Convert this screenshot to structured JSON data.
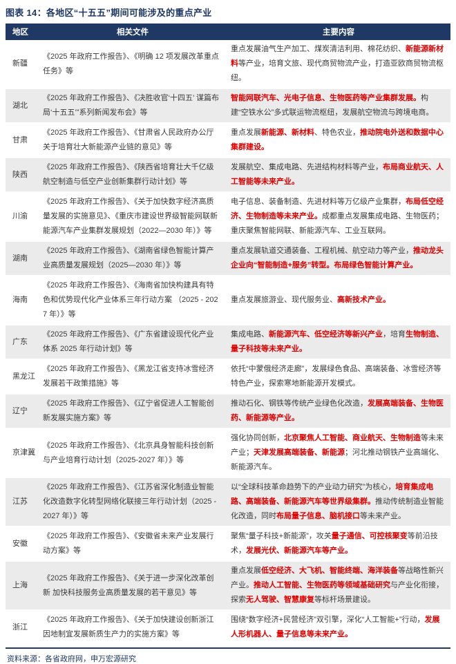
{
  "title": "图表 14：各地区“十五五”期间可能涉及的重点产业",
  "colors": {
    "accent_navy": "#1f3864",
    "highlight_red": "#e00000",
    "row_alt": "#ebebeb"
  },
  "footer": {
    "source": "资料来源：各省政府网，申万宏源研究"
  },
  "table": {
    "headers": [
      "地区",
      "相关文件",
      "主要内容"
    ],
    "rows": [
      {
        "region": "新疆",
        "documents": "《2025 年政府工作报告》、《明确 12 项发展改革重点任务》等",
        "content": [
          {
            "t": "重点发展油气生产加工、煤炭清洁利用、棉花纺织、",
            "red": false
          },
          {
            "t": "新能源新材料",
            "red": true
          },
          {
            "t": "等产业，培育文旅、现代商贸物流产业，打造亚欧商贸物流枢纽。",
            "red": false
          }
        ]
      },
      {
        "region": "湖北",
        "documents": "《2025 年政府工作报告》、《决胜收官‘十四五’ 谋篇布局‘十五五’”系列新闻发布会》等",
        "content": [
          {
            "t": "智能网联汽车、光电子信息、生物医药等产业集群发展。",
            "red": true
          },
          {
            "t": "构建“空铁水公”多式联运物流枢纽，发展航空物流与跨境电商。",
            "red": false
          }
        ]
      },
      {
        "region": "甘肃",
        "documents": "《2025 年政府工作报告》、《甘肃省人民政府办公厅关于培育壮大新能源产业链的意见》等",
        "content": [
          {
            "t": "重点发展",
            "red": false
          },
          {
            "t": "新能源、新材料",
            "red": true
          },
          {
            "t": "、特色农业，",
            "red": false
          },
          {
            "t": "推动院电外送和数据中心集群建设。",
            "red": true
          }
        ]
      },
      {
        "region": "陕西",
        "documents": "《2025 年政府工作报告》、《陕西省培育壮大千亿级航空制造与低空产业创新集群行动计划》等",
        "content": [
          {
            "t": "发展航空、集成电路、先进结构材料等产业，",
            "red": false
          },
          {
            "t": "布局商业航天、人工智能等未来产业。",
            "red": true
          }
        ]
      },
      {
        "region": "川渝",
        "documents": "《2025 年政府工作报告》、《关于加快数字经济高质量发展的实施意见》、《重庆市建设世界级智能网联新能源汽车产业集群发展规划（2022—2030 年）》等",
        "content": [
          {
            "t": "电子信息、装备制造、先进材料等万亿级产业集群，",
            "red": false
          },
          {
            "t": "布局低空经济、生物制造等未来产业。",
            "red": true
          },
          {
            "t": "成都重点发展集成电路、生物医药；重庆聚焦智能网联、新能源汽车、工业互联网。",
            "red": false
          }
        ]
      },
      {
        "region": "湖南",
        "documents": "《2025 年政府工作报告》、《湖南省绿色智能计算产业高质量发展规划（2025—2030 年）》等",
        "content": [
          {
            "t": "重点发展轨道交通装备、工程机械、航空动力等产业，",
            "red": false
          },
          {
            "t": "推动龙头企业向“智能制造+服务”转型。布局绿色智能计算产业。",
            "red": true
          }
        ]
      },
      {
        "region": "海南",
        "documents": "《2025 年政府工作报告》、《海南省加快构建具有特色和优势现代化产业体系三年行动方案 （2025 - 2027 年）》等",
        "content": [
          {
            "t": "重点发展旅游业、现代服务业、",
            "red": false
          },
          {
            "t": "高新技术产业。",
            "red": true
          }
        ]
      },
      {
        "region": "广东",
        "documents": "《2025 年政府工作报告》、《广东省建设现代化产业体系 2025 年行动计划》等",
        "content": [
          {
            "t": "集成电路、",
            "red": false
          },
          {
            "t": "新能源汽车、低空经济等新兴产业",
            "red": true
          },
          {
            "t": "，培育",
            "red": false
          },
          {
            "t": "生物制造、量子科技等未来产业。",
            "red": true
          }
        ]
      },
      {
        "region": "黑龙江",
        "documents": "《2025 年政府工作报告》、《黑龙江省支持冰雪经济发展若干政策措施》等",
        "content": [
          {
            "t": "依托“中蒙俄经济走廊”，发展绿色食品、高端装备、冰雪经济等特色产业，探索寒地新能源开发模式。",
            "red": false
          }
        ]
      },
      {
        "region": "辽宁",
        "documents": "《2025 年政府工作报告》、《辽宁省促进人工智能创新发展实施方案》等",
        "content": [
          {
            "t": "推动石化、钢铁等传统产业绿色化改造，",
            "red": false
          },
          {
            "t": "发展高端装备、生物医药、新能源等产业。",
            "red": true
          }
        ]
      },
      {
        "region": "京津冀",
        "documents": "《2025 年政府工作报告》、《北京具身智能科技创新与产业培育行动计划（2025-2027 年）》等",
        "content": [
          {
            "t": "强化协同创新，",
            "red": false
          },
          {
            "t": "北京聚焦人工智能、商业航天、生物制造",
            "red": true
          },
          {
            "t": "等未来产业；",
            "red": false
          },
          {
            "t": "天津发展高端装备、新能源",
            "red": true
          },
          {
            "t": "；河北推动钢铁产业高端化、新能源汽车。",
            "red": false
          }
        ]
      },
      {
        "region": "江苏",
        "documents": "《2025 年政府工作报告》、《江苏省深化制造业智能化改造数字化转型网络化联接三年行动计划（2025 - 2027 年）》等",
        "content": [
          {
            "t": "以“全球科技革命趋势下的产业动力研究”为核心，",
            "red": false
          },
          {
            "t": "培育集成电路、高端装备、新能源汽车等世界级集群。",
            "red": true
          },
          {
            "t": "推动传统制造业智能化改造，同时",
            "red": false
          },
          {
            "t": "布局量子信息、脑机接口",
            "red": true
          },
          {
            "t": "等未来产业。",
            "red": false
          }
        ]
      },
      {
        "region": "安徽",
        "documents": "《2025 年政府工作报告》、《安徽省未来产业发展行动方案》等",
        "content": [
          {
            "t": "聚焦“量子科技+新能源”，攻关",
            "red": false
          },
          {
            "t": "量子通信、可控核聚变",
            "red": true
          },
          {
            "t": "等前沿技术，",
            "red": false
          },
          {
            "t": "发展光伏、新能源汽车等产业。",
            "red": true
          }
        ]
      },
      {
        "region": "上海",
        "documents": "《2025 年政府工作报告》、《关于进一步深化改革创新 加快科技服务业高质量发展的若干意见》等",
        "content": [
          {
            "t": "重点发展",
            "red": false
          },
          {
            "t": "低空经济、大飞机、智能终端、海洋装备",
            "red": true
          },
          {
            "t": "等战略性新兴产业。",
            "red": false
          },
          {
            "t": "推动人工智能、生物医药等领域基础研究",
            "red": true
          },
          {
            "t": "与产业化衔接，探索",
            "red": false
          },
          {
            "t": "无人驾驶、智慧康复",
            "red": true
          },
          {
            "t": "等标杆场景建设。",
            "red": false
          }
        ]
      },
      {
        "region": "浙江",
        "documents": "《2025 年政府工作报告》、《关于加快建设创新浙江因地制宜发展新质生产力的实施方案》等",
        "content": [
          {
            "t": "围绕“数字经济+民营经济”双引擎，深化“人工智能+”行动，",
            "red": false
          },
          {
            "t": "发展人形机器人、量子信息等未来产业。",
            "red": true
          }
        ]
      }
    ]
  }
}
